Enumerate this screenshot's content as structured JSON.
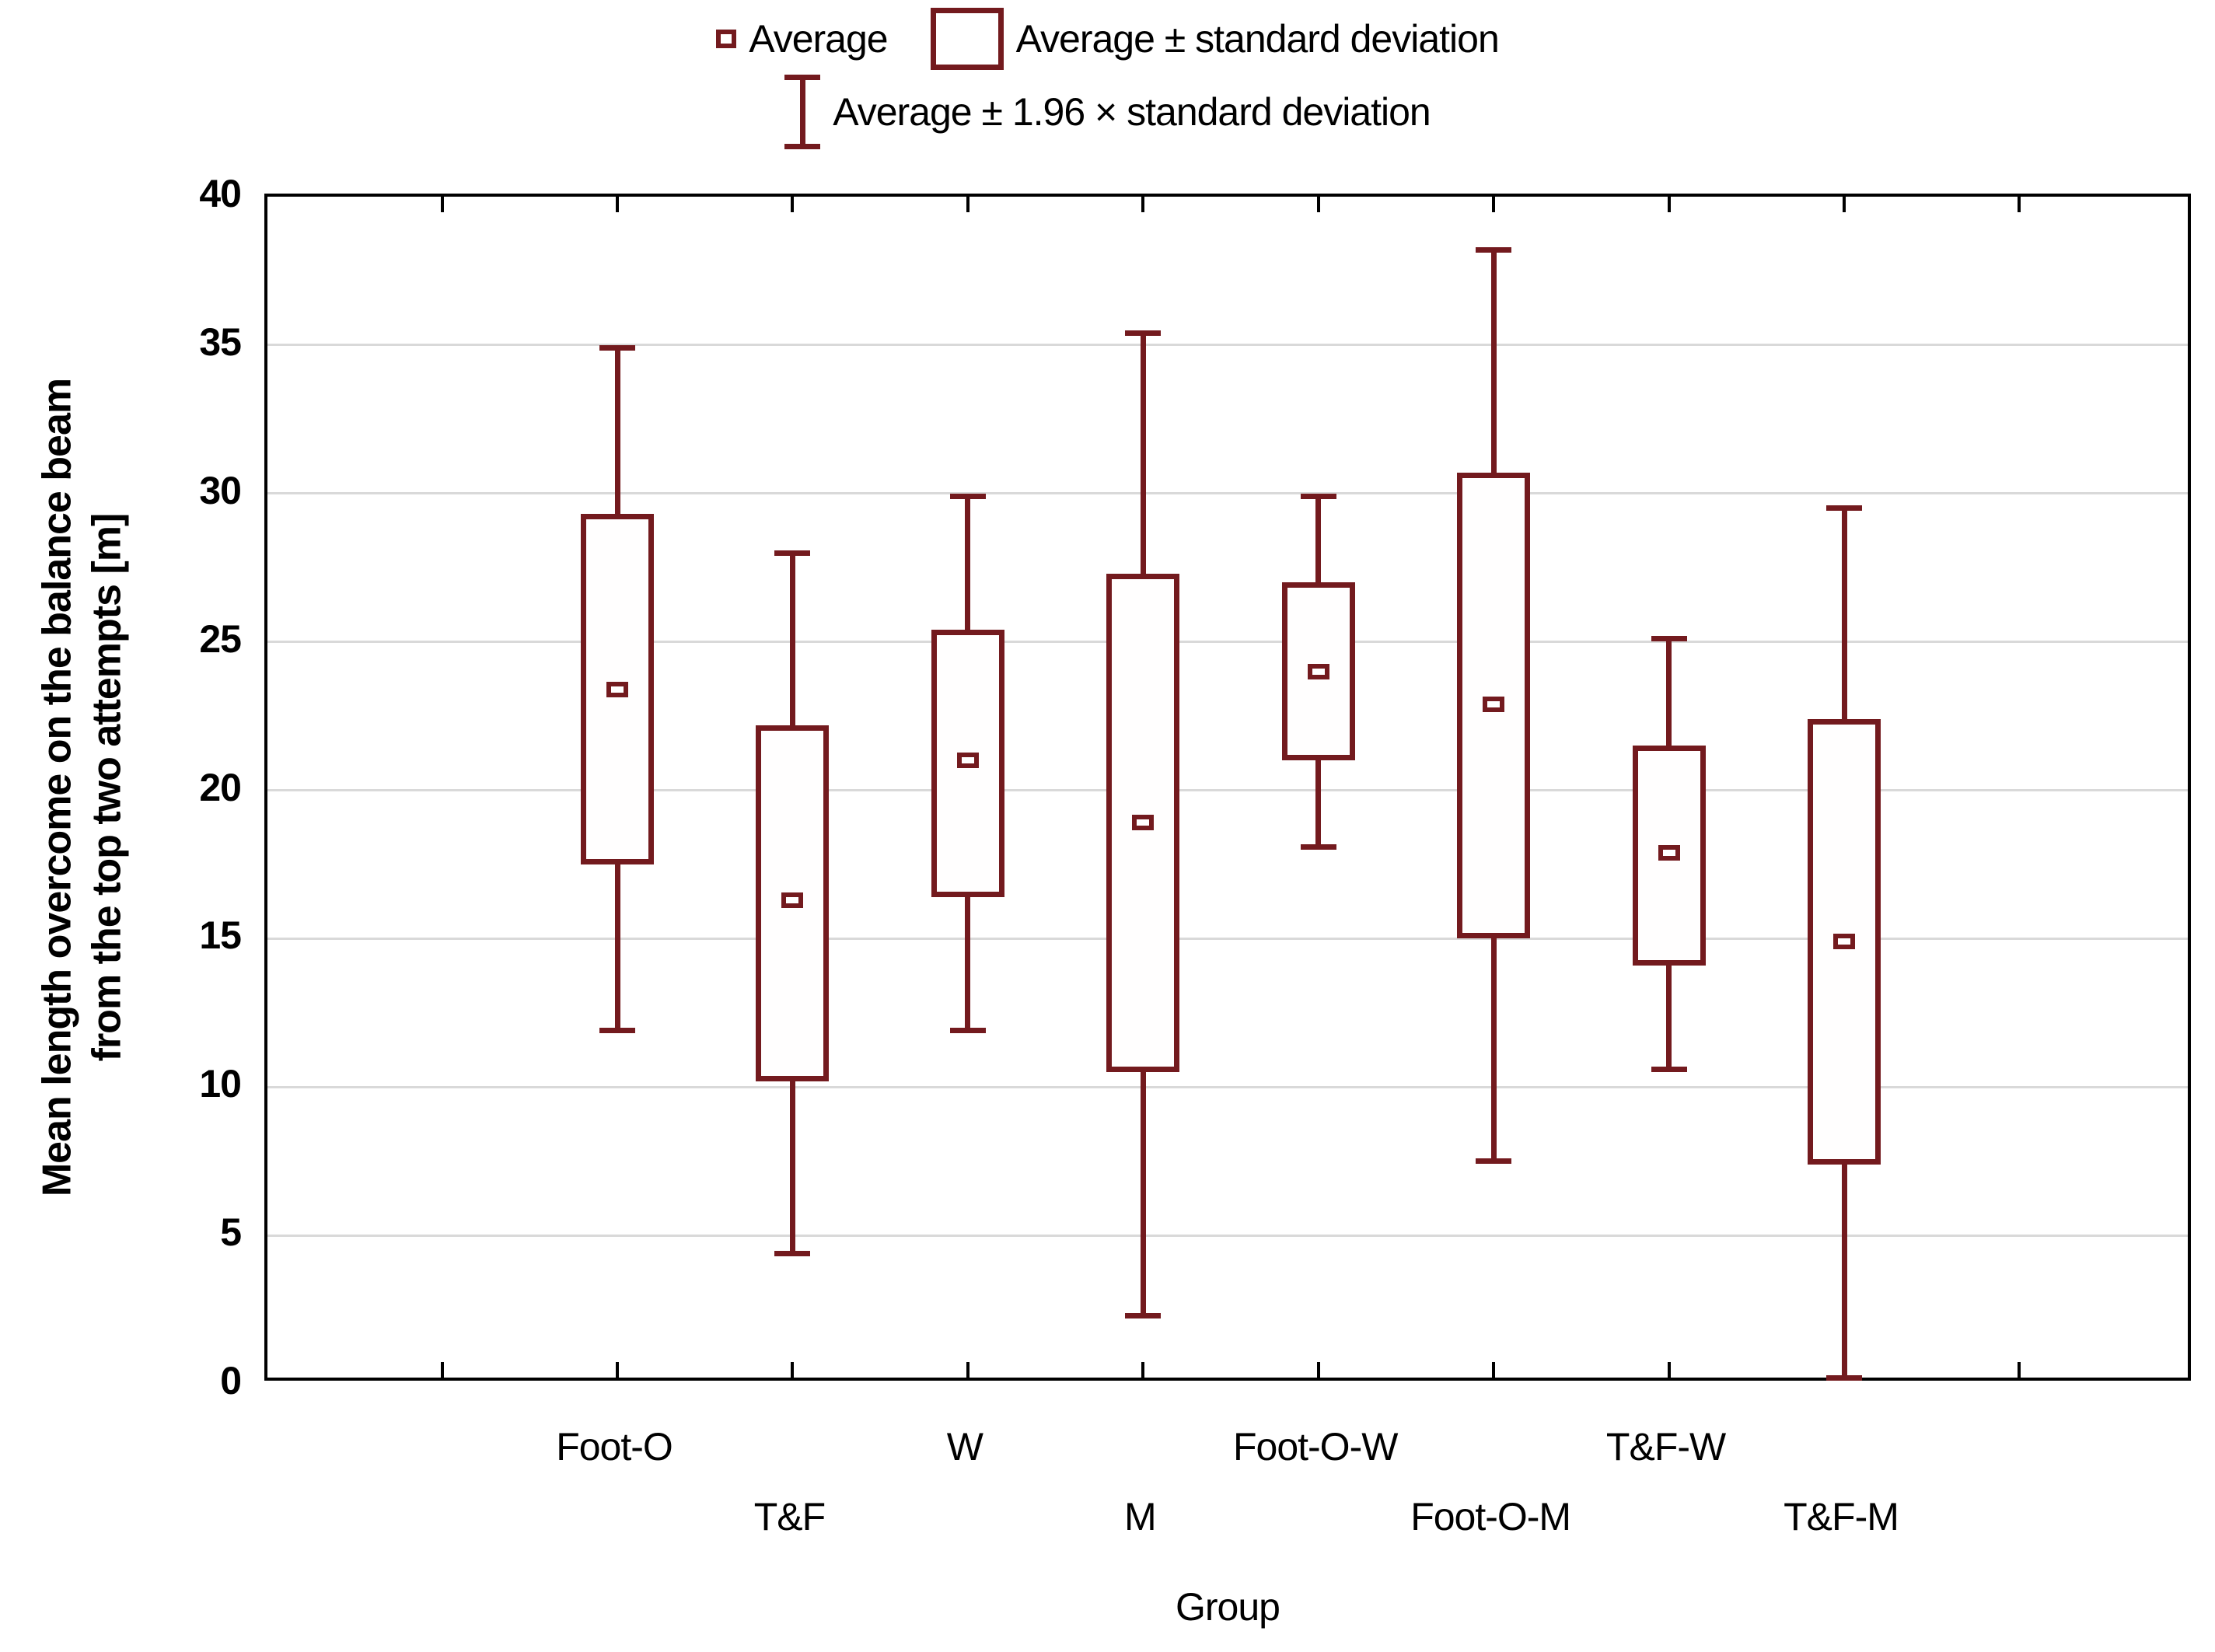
{
  "legend": {
    "average": "Average",
    "avg_sd": "Average ± standard deviation",
    "avg_196sd": "Average ± 1.96 × standard deviation"
  },
  "axes": {
    "y_title_line1": "Mean length overcome on the balance beam",
    "y_title_line2": "from the top two attempts [m]",
    "x_title": "Group"
  },
  "chart_data": {
    "type": "box",
    "title": "",
    "xlabel": "Group",
    "ylabel": "Mean length overcome on the balance beam from the top two attempts [m]",
    "ylim": [
      0,
      40
    ],
    "yticks": [
      0,
      5,
      10,
      15,
      20,
      25,
      30,
      35,
      40
    ],
    "grid": true,
    "legend_position": "top-center",
    "groups": [
      "Foot-O",
      "T&F",
      "W",
      "M",
      "Foot-O-W",
      "Foot-O-M",
      "T&F-W",
      "T&F-M"
    ],
    "series": [
      {
        "group": "Foot-O",
        "mean": 23.4,
        "box_low": 17.5,
        "box_high": 29.3,
        "whisker_low": 11.9,
        "whisker_high": 34.9
      },
      {
        "group": "T&F",
        "mean": 16.3,
        "box_low": 10.2,
        "box_high": 22.2,
        "whisker_low": 4.4,
        "whisker_high": 28.0
      },
      {
        "group": "W",
        "mean": 21.0,
        "box_low": 16.4,
        "box_high": 25.4,
        "whisker_low": 11.9,
        "whisker_high": 29.9
      },
      {
        "group": "M",
        "mean": 18.9,
        "box_low": 10.5,
        "box_high": 27.3,
        "whisker_low": 2.3,
        "whisker_high": 35.4
      },
      {
        "group": "Foot-O-W",
        "mean": 24.0,
        "box_low": 21.0,
        "box_high": 27.0,
        "whisker_low": 18.1,
        "whisker_high": 29.9
      },
      {
        "group": "Foot-O-M",
        "mean": 22.9,
        "box_low": 15.0,
        "box_high": 30.7,
        "whisker_low": 7.5,
        "whisker_high": 38.2
      },
      {
        "group": "T&F-W",
        "mean": 17.9,
        "box_low": 14.1,
        "box_high": 21.5,
        "whisker_low": 10.6,
        "whisker_high": 25.1
      },
      {
        "group": "T&F-M",
        "mean": 14.9,
        "box_low": 7.4,
        "box_high": 22.4,
        "whisker_low": 0.2,
        "whisker_high": 29.5
      }
    ],
    "colors": {
      "box_stroke": "#731a1e",
      "grid": "#d9d9d9",
      "axis": "#000000",
      "background": "#ffffff"
    }
  }
}
